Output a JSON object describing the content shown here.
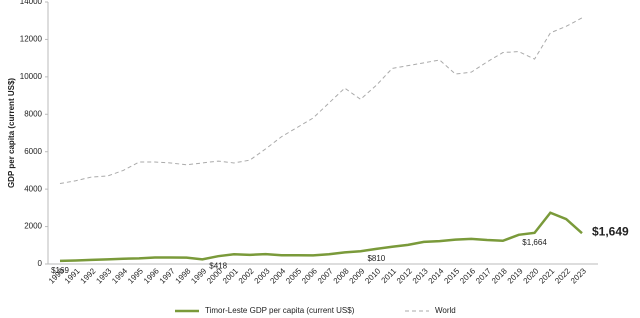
{
  "chart_data": {
    "type": "line",
    "y_label": "GDP per capita (current US$)",
    "x": [
      1990,
      1991,
      1992,
      1993,
      1994,
      1995,
      1996,
      1997,
      1998,
      1999,
      2000,
      2001,
      2002,
      2003,
      2004,
      2005,
      2006,
      2007,
      2008,
      2009,
      2010,
      2011,
      2012,
      2013,
      2014,
      2015,
      2016,
      2017,
      2018,
      2019,
      2020,
      2021,
      2022,
      2023
    ],
    "xlim": [
      1990,
      2023
    ],
    "ylim": [
      0,
      14000
    ],
    "yticks": [
      0,
      2000,
      4000,
      6000,
      8000,
      10000,
      12000,
      14000
    ],
    "grid": false,
    "legend": "bottom",
    "series": [
      {
        "name": "Timor-Leste GDP per capita (current US$)",
        "color": "#7a9a3a",
        "dash": false,
        "values": [
          169,
          190,
          220,
          250,
          280,
          300,
          350,
          350,
          340,
          250,
          418,
          520,
          490,
          530,
          470,
          470,
          460,
          520,
          620,
          680,
          810,
          920,
          1020,
          1180,
          1220,
          1300,
          1340,
          1280,
          1240,
          1560,
          1664,
          2740,
          2400,
          1649
        ],
        "value_labels": [
          "$169",
          null,
          null,
          null,
          null,
          null,
          null,
          null,
          null,
          null,
          "$418",
          null,
          null,
          null,
          null,
          null,
          null,
          null,
          null,
          null,
          "$810",
          null,
          null,
          null,
          null,
          null,
          null,
          null,
          null,
          null,
          "$1,664",
          null,
          null,
          "$1,649"
        ]
      },
      {
        "name": "World",
        "color": "#aaaaaa",
        "dash": true,
        "values": [
          4300,
          4450,
          4650,
          4700,
          5000,
          5450,
          5450,
          5400,
          5300,
          5400,
          5500,
          5400,
          5550,
          6150,
          6800,
          7300,
          7800,
          8600,
          9400,
          8800,
          9550,
          10450,
          10600,
          10750,
          10900,
          10150,
          10250,
          10800,
          11300,
          11350,
          10950,
          12350,
          12700,
          13150
        ]
      }
    ]
  }
}
